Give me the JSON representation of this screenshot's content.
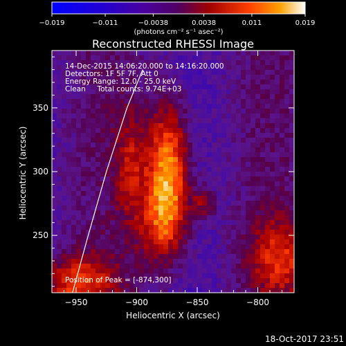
{
  "chart_data": {
    "type": "heatmap",
    "title": "Reconstructed RHESSI Image",
    "xlabel": "Heliocentric X (arcsec)",
    "ylabel": "Heliocentric Y (arcsec)",
    "xlim": [
      -970,
      -770
    ],
    "ylim": [
      205,
      395
    ],
    "x_ticks": [
      -950,
      -900,
      -850,
      -800
    ],
    "y_ticks": [
      250,
      300,
      350
    ],
    "colorbar": {
      "min": -0.019,
      "max": 0.019,
      "ticks": [
        -0.019,
        -0.011,
        -0.0038,
        0.0038,
        0.011,
        0.019
      ],
      "tick_labels": [
        "−0.019",
        "−0.011",
        "−0.0038",
        "0.0038",
        "0.011",
        "0.019"
      ],
      "unit_label": "(photons cm⁻² s⁻¹ asec⁻²)"
    },
    "annotations": [
      "14-Dec-2015 14:06:20.000 to 14:16:20.000",
      "Detectors: 1F 5F 7F, Att 0",
      "Energy Range: 12.0 - 25.0 keV",
      "Clean     Total counts: 9.74E+03"
    ],
    "peak_label": "Position of Peak = [-874,300]",
    "peak": {
      "x": -874,
      "y": 300,
      "value": 0.019
    },
    "sources": [
      {
        "x": -874,
        "y": 300,
        "sx": 12,
        "sy": 36,
        "amp": 0.019
      },
      {
        "x": -880,
        "y": 258,
        "sx": 14,
        "sy": 22,
        "amp": 0.009
      },
      {
        "x": -950,
        "y": 212,
        "sx": 22,
        "sy": 16,
        "amp": 0.012
      },
      {
        "x": -782,
        "y": 232,
        "sx": 18,
        "sy": 22,
        "amp": 0.01
      },
      {
        "x": -845,
        "y": 275,
        "sx": 7,
        "sy": 9,
        "amp": 0.008
      },
      {
        "x": -905,
        "y": 305,
        "sx": 9,
        "sy": 30,
        "amp": 0.008
      }
    ],
    "background_level": -0.004,
    "limb_curve": [
      [
        -953,
        205
      ],
      [
        -940,
        250
      ],
      [
        -925,
        300
      ],
      [
        -908,
        350
      ],
      [
        -895,
        380
      ]
    ]
  },
  "timestamp": "18-Oct-2017 23:51"
}
